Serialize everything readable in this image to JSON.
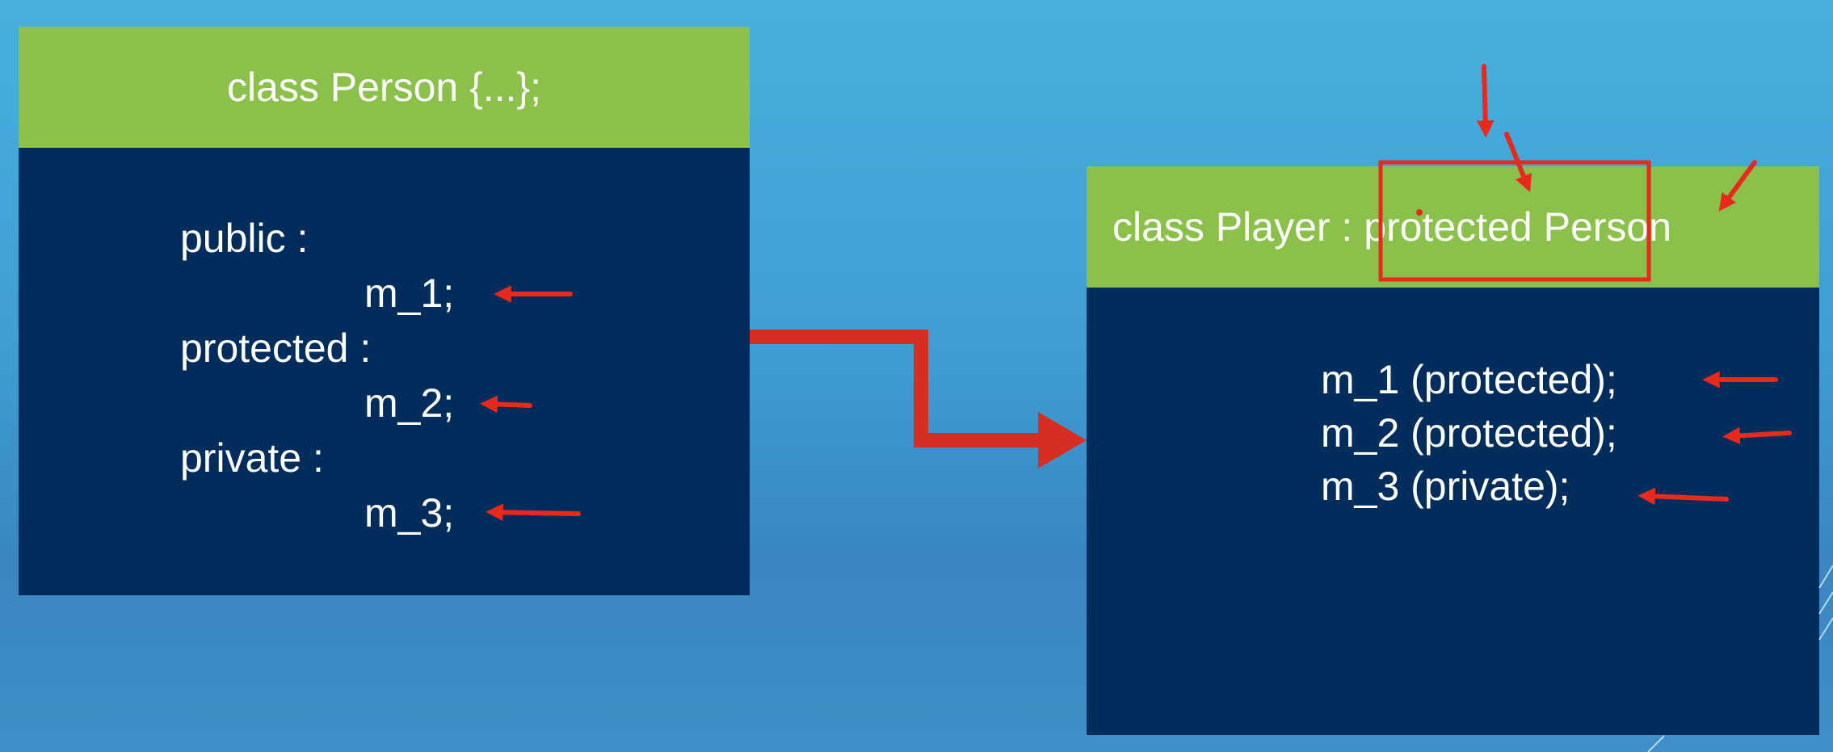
{
  "person": {
    "title": "class Person {...};",
    "lines": [
      "public :",
      "m_1;",
      "protected :",
      "m_2;",
      "private :",
      "m_3;"
    ]
  },
  "player": {
    "title_prefix": "class Player : ",
    "title_keyword": "protected",
    "title_suffix": " Person",
    "lines": [
      "m_1 (protected);",
      "m_2 (protected);",
      "m_3 (private);"
    ]
  },
  "colors": {
    "background": "#44a6da",
    "box_fill": "#012d5d",
    "header_fill": "#8bc14b",
    "annotation": "#e8291c"
  }
}
